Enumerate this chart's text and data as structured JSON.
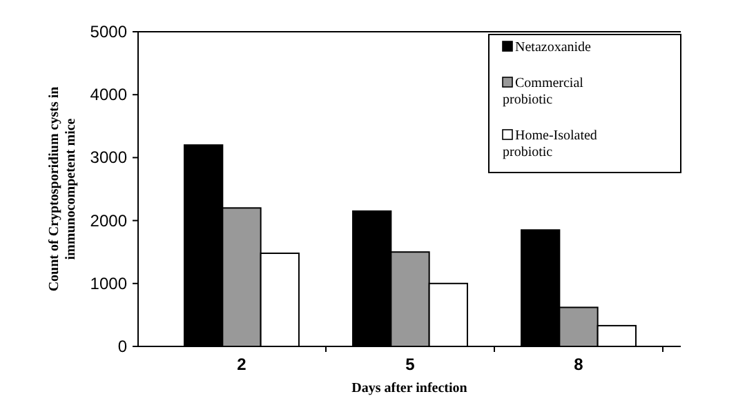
{
  "chart_data": {
    "type": "bar",
    "xlabel": "Days after infection",
    "ylabel": "Count of Cryptosporidium cysts in\nimmunocompetent mice",
    "categories": [
      "2",
      "5",
      "8"
    ],
    "series": [
      {
        "name": "Netazoxanide",
        "color": "#000000",
        "values": [
          3200,
          2150,
          1850
        ]
      },
      {
        "name": "Commercial probiotic",
        "color": "#999999",
        "values": [
          2200,
          1500,
          620
        ]
      },
      {
        "name": "Home-Isolated probiotic",
        "color": "#ffffff",
        "values": [
          1480,
          1000,
          330
        ]
      }
    ],
    "ylim": [
      0,
      5000
    ],
    "yticks": [
      0,
      1000,
      2000,
      3000,
      4000,
      5000
    ],
    "legend": "top right",
    "grid": false
  }
}
